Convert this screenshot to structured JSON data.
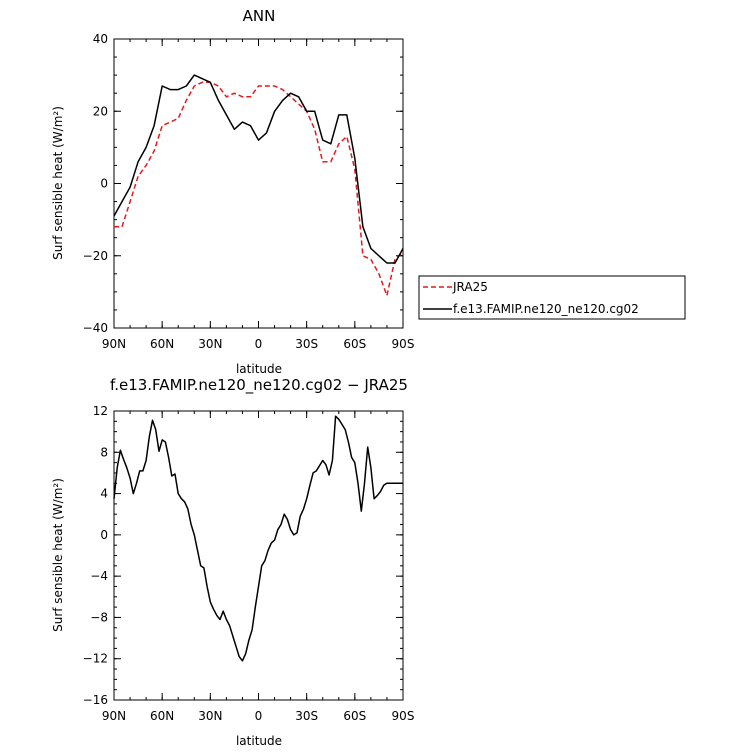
{
  "chart_data": [
    {
      "type": "line",
      "title": "ANN",
      "xlabel": "latitude",
      "ylabel": "Surf sensible heat (W/m²)",
      "ylim": [
        -40,
        40
      ],
      "xlim": [
        90,
        -90
      ],
      "yticks": [
        "40",
        "20",
        "0",
        "−20",
        "−40"
      ],
      "yticks_values": [
        40,
        20,
        0,
        -20,
        -40
      ],
      "xticks": [
        "90N",
        "60N",
        "30N",
        "0",
        "30S",
        "60S",
        "90S"
      ],
      "xticks_values": [
        90,
        60,
        30,
        0,
        -30,
        -60,
        -90
      ],
      "legend": {
        "placement": "outside-right"
      },
      "series": [
        {
          "name": "JRA25",
          "color": "#e41a1c",
          "dash": "dashed",
          "x": [
            90,
            85,
            80,
            75,
            70,
            65,
            60,
            55,
            50,
            45,
            40,
            35,
            30,
            25,
            20,
            15,
            10,
            5,
            0,
            -5,
            -10,
            -15,
            -20,
            -25,
            -30,
            -35,
            -40,
            -45,
            -50,
            -55,
            -60,
            -65,
            -70,
            -75,
            -80,
            -85,
            -90
          ],
          "y": [
            -12,
            -12,
            -5,
            2,
            5,
            9,
            16,
            17,
            18,
            23,
            27,
            28,
            28,
            27,
            24,
            25,
            24,
            24,
            27,
            27,
            27,
            26,
            24,
            22,
            20,
            15,
            6,
            6,
            11,
            13,
            4,
            -20,
            -21,
            -25,
            -31,
            -21,
            -19
          ]
        },
        {
          "name": "f.e13.FAMIP.ne120_ne120.cg02",
          "color": "#000000",
          "dash": "solid",
          "x": [
            90,
            85,
            80,
            75,
            70,
            65,
            60,
            55,
            50,
            45,
            40,
            35,
            30,
            25,
            20,
            15,
            10,
            5,
            0,
            -5,
            -10,
            -15,
            -20,
            -25,
            -30,
            -35,
            -40,
            -45,
            -50,
            -55,
            -60,
            -65,
            -70,
            -75,
            -80,
            -85,
            -90
          ],
          "y": [
            -9,
            -5,
            -1,
            6,
            10,
            16,
            27,
            26,
            26,
            27,
            30,
            29,
            28,
            23,
            19,
            15,
            17,
            16,
            12,
            14,
            20,
            23,
            25,
            24,
            20,
            20,
            12,
            11,
            19,
            19,
            7,
            -12,
            -18,
            -20,
            -22,
            -22,
            -18
          ]
        }
      ]
    },
    {
      "type": "line",
      "title": "f.e13.FAMIP.ne120_ne120.cg02 − JRA25",
      "xlabel": "latitude",
      "ylabel": "Surf sensible heat (W/m²)",
      "ylim": [
        -16,
        12
      ],
      "xlim": [
        90,
        -90
      ],
      "yticks": [
        "12",
        "8",
        "4",
        "0",
        "−4",
        "−8",
        "−12",
        "−16"
      ],
      "yticks_values": [
        12,
        8,
        4,
        0,
        -4,
        -8,
        -12,
        -16
      ],
      "xticks": [
        "90N",
        "60N",
        "30N",
        "0",
        "30S",
        "60S",
        "90S"
      ],
      "xticks_values": [
        90,
        60,
        30,
        0,
        -30,
        -60,
        -90
      ],
      "series": [
        {
          "color": "#000000",
          "dash": "solid",
          "x": [
            90,
            88,
            86,
            84,
            82,
            80,
            78,
            76,
            74,
            72,
            70,
            68,
            66,
            64,
            62,
            60,
            58,
            56,
            54,
            52,
            50,
            48,
            46,
            44,
            42,
            40,
            38,
            36,
            34,
            32,
            30,
            28,
            26,
            24,
            22,
            20,
            18,
            16,
            14,
            12,
            10,
            8,
            6,
            4,
            2,
            0,
            -2,
            -4,
            -6,
            -8,
            -10,
            -12,
            -14,
            -16,
            -18,
            -20,
            -22,
            -24,
            -26,
            -28,
            -30,
            -32,
            -34,
            -36,
            -38,
            -40,
            -42,
            -44,
            -46,
            -48,
            -50,
            -52,
            -54,
            -56,
            -58,
            -60,
            -62,
            -64,
            -66,
            -68,
            -70,
            -72,
            -74,
            -76,
            -78,
            -80,
            -82,
            -84,
            -86,
            -88,
            -90
          ],
          "y": [
            3.5,
            6.5,
            8.2,
            7.3,
            6.5,
            5.5,
            4.0,
            5.0,
            6.2,
            6.2,
            7.2,
            9.5,
            11.1,
            10.2,
            8.1,
            9.2,
            9.0,
            7.5,
            5.7,
            5.9,
            4.0,
            3.5,
            3.2,
            2.5,
            1.0,
            0.0,
            -1.5,
            -3.0,
            -3.2,
            -5.0,
            -6.5,
            -7.2,
            -7.8,
            -8.2,
            -7.4,
            -8.2,
            -8.8,
            -9.8,
            -10.8,
            -11.8,
            -12.2,
            -11.5,
            -10.2,
            -9.2,
            -7.0,
            -5.0,
            -3.0,
            -2.5,
            -1.5,
            -0.8,
            -0.5,
            0.5,
            1.0,
            2.0,
            1.5,
            0.5,
            0.0,
            0.2,
            1.8,
            2.5,
            3.5,
            4.8,
            6.0,
            6.2,
            6.7,
            7.2,
            6.8,
            5.8,
            7.2,
            11.5,
            11.2,
            10.7,
            10.2,
            9.0,
            7.5,
            7.0,
            5.0,
            2.3,
            5.0,
            8.5,
            6.5,
            3.5,
            3.8,
            4.2,
            4.8,
            5.0,
            5.0,
            5.0,
            5.0,
            5.0,
            5.0
          ]
        }
      ]
    }
  ]
}
